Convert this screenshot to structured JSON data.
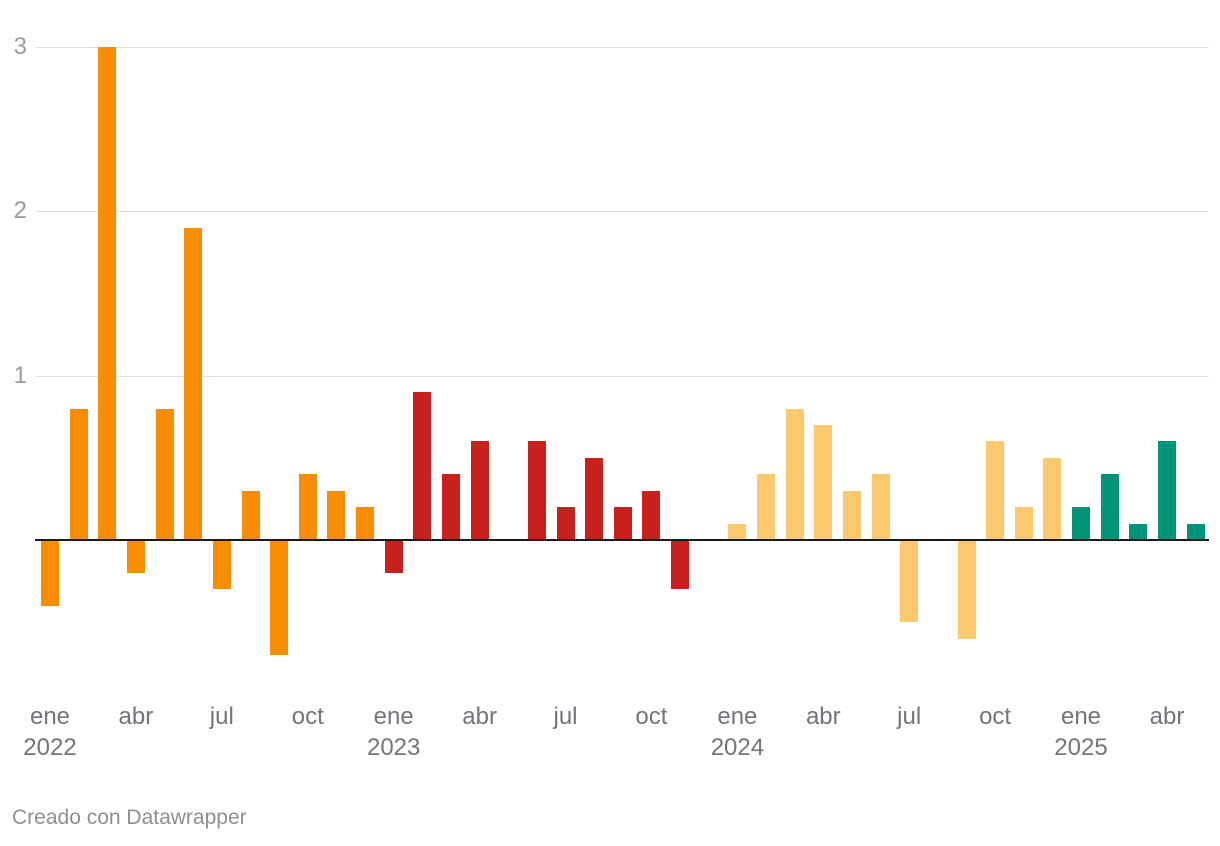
{
  "chart_data": {
    "type": "bar",
    "title": "",
    "y_axis": {
      "ticks": [
        1,
        2,
        3
      ],
      "range": [
        -0.8,
        3.0
      ],
      "grid": true,
      "baseline": 0
    },
    "x_axis": {
      "ticks": [
        "ene 2022",
        "abr",
        "jul",
        "oct",
        "ene 2023",
        "abr",
        "jul",
        "oct",
        "ene 2024",
        "abr",
        "jul",
        "oct",
        "ene 2025",
        "abr"
      ],
      "tick_interval_months": 3
    },
    "years": [
      {
        "year": "2022",
        "color": "#F88C02",
        "months": [
          "ene",
          "feb",
          "mar",
          "abr",
          "may",
          "jun",
          "jul",
          "ago",
          "sep",
          "oct",
          "nov",
          "dic"
        ],
        "values": [
          -0.4,
          0.8,
          3.0,
          -0.2,
          0.8,
          1.9,
          -0.3,
          0.3,
          -0.7,
          0.4,
          0.3,
          0.2
        ]
      },
      {
        "year": "2023",
        "color": "#C8211D",
        "months": [
          "ene",
          "feb",
          "mar",
          "abr",
          "may",
          "jun",
          "jul",
          "ago",
          "sep",
          "oct",
          "nov",
          "dic"
        ],
        "values": [
          -0.2,
          0.9,
          0.4,
          0.6,
          0,
          0.6,
          0.2,
          0.5,
          0.2,
          0.3,
          -0.3,
          0
        ]
      },
      {
        "year": "2024",
        "color": "#FDC96F",
        "months": [
          "ene",
          "feb",
          "mar",
          "abr",
          "may",
          "jun",
          "jul",
          "ago",
          "sep",
          "oct",
          "nov",
          "dic"
        ],
        "values": [
          0.1,
          0.4,
          0.8,
          0.7,
          0.3,
          0.4,
          -0.5,
          0,
          -0.6,
          0.6,
          0.2,
          0.5
        ]
      },
      {
        "year": "2025",
        "color": "#009478",
        "months": [
          "ene",
          "feb",
          "mar",
          "abr",
          "may"
        ],
        "values": [
          0.2,
          0.4,
          0.1,
          0.6,
          0.1
        ]
      }
    ],
    "colors": {
      "grid": "#e2e2e2",
      "baseline": "#1a1a1a",
      "y_tick_text": "#9b9b9b",
      "x_tick_text": "#74747a",
      "credit_text": "#8f8f8f",
      "background": "#ffffff"
    }
  },
  "footer": {
    "credit": "Creado con Datawrapper"
  }
}
